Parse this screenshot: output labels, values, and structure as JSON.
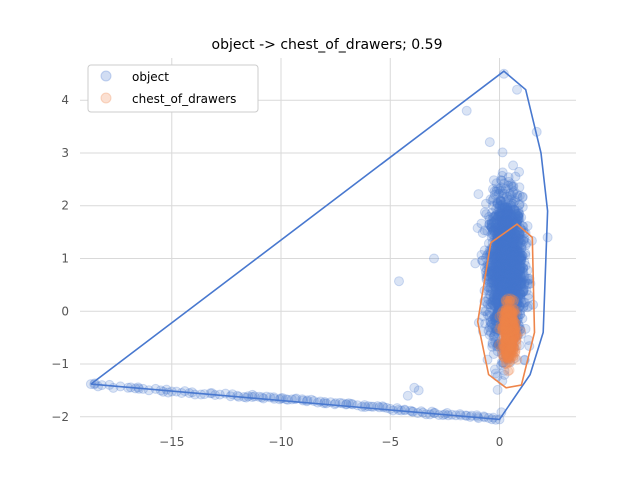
{
  "chart_data": {
    "type": "scatter",
    "title": "object -> chest_of_drawers; 0.59",
    "xlabel": "",
    "ylabel": "",
    "xlim": [
      -19.2,
      3.5
    ],
    "ylim": [
      -2.25,
      4.8
    ],
    "xticks": [
      -15,
      -10,
      -5,
      0
    ],
    "xtick_labels": [
      "−15",
      "−10",
      "−5",
      "0"
    ],
    "yticks": [
      -2,
      -1,
      0,
      1,
      2,
      3,
      4
    ],
    "ytick_labels": [
      "−2",
      "−1",
      "0",
      "1",
      "2",
      "3",
      "4"
    ],
    "grid": true,
    "legend_position": "top-left",
    "series": [
      {
        "name": "object",
        "color": "#4878cf",
        "marker_alpha": 0.2,
        "cluster": {
          "center": [
            0.3,
            0.8
          ],
          "spread": [
            0.75,
            1.35
          ],
          "count": 2200
        },
        "tail": [
          [
            -18.7,
            -1.38
          ],
          [
            -18.2,
            -1.4
          ],
          [
            -17.0,
            -1.45
          ],
          [
            -16.5,
            -1.47
          ],
          [
            -15.5,
            -1.5
          ],
          [
            -15.0,
            -1.52
          ],
          [
            -14.2,
            -1.55
          ],
          [
            -13.5,
            -1.57
          ],
          [
            -12.8,
            -1.58
          ],
          [
            -12.0,
            -1.6
          ],
          [
            -11.5,
            -1.61
          ],
          [
            -11.0,
            -1.62
          ],
          [
            -10.5,
            -1.63
          ],
          [
            -10.0,
            -1.65
          ],
          [
            -9.5,
            -1.67
          ],
          [
            -9.0,
            -1.69
          ],
          [
            -8.5,
            -1.7
          ],
          [
            -8.0,
            -1.72
          ],
          [
            -7.5,
            -1.74
          ],
          [
            -7.0,
            -1.76
          ],
          [
            -6.5,
            -1.78
          ],
          [
            -6.0,
            -1.8
          ],
          [
            -5.5,
            -1.82
          ],
          [
            -5.0,
            -1.85
          ],
          [
            -4.5,
            -1.88
          ],
          [
            -4.0,
            -1.9
          ],
          [
            -3.5,
            -1.92
          ],
          [
            -3.0,
            -1.93
          ],
          [
            -2.5,
            -1.95
          ],
          [
            -2.0,
            -1.97
          ],
          [
            -1.5,
            -1.98
          ],
          [
            -1.0,
            -2.0
          ],
          [
            -0.5,
            -2.02
          ],
          [
            0.0,
            -2.05
          ]
        ],
        "outliers": [
          [
            -4.6,
            0.57
          ],
          [
            -3.7,
            -1.5
          ],
          [
            -4.2,
            -1.6
          ],
          [
            -3.9,
            -1.45
          ],
          [
            0.2,
            4.5
          ],
          [
            0.8,
            4.2
          ],
          [
            1.7,
            3.4
          ],
          [
            2.2,
            1.4
          ],
          [
            -1.5,
            3.8
          ],
          [
            -3.0,
            1.0
          ]
        ],
        "hull": [
          [
            -18.7,
            -1.38
          ],
          [
            0.2,
            4.55
          ],
          [
            1.2,
            4.2
          ],
          [
            1.9,
            3.0
          ],
          [
            2.2,
            1.9
          ],
          [
            2.0,
            -0.4
          ],
          [
            1.4,
            -1.2
          ],
          [
            0.0,
            -2.05
          ],
          [
            -18.7,
            -1.38
          ]
        ]
      },
      {
        "name": "chest_of_drawers",
        "color": "#ee854a",
        "marker_alpha": 0.2,
        "cluster": {
          "center": [
            0.45,
            -0.4
          ],
          "spread": [
            0.3,
            0.5
          ],
          "count": 550
        },
        "hull": [
          [
            -0.4,
            1.3
          ],
          [
            0.8,
            1.65
          ],
          [
            1.5,
            1.4
          ],
          [
            1.6,
            -0.4
          ],
          [
            1.0,
            -1.4
          ],
          [
            0.3,
            -1.45
          ],
          [
            -0.5,
            -1.2
          ],
          [
            -1.0,
            -0.2
          ],
          [
            -0.4,
            1.3
          ]
        ]
      }
    ]
  }
}
